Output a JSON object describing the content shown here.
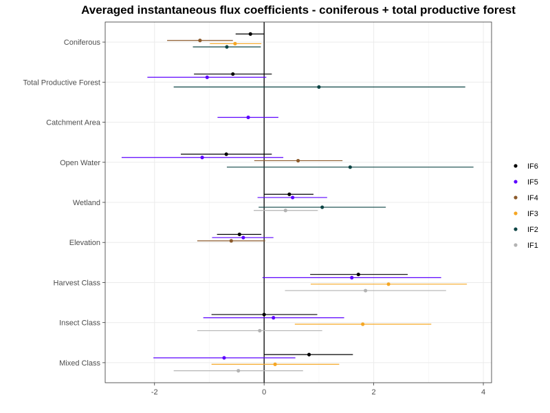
{
  "chart_data": {
    "type": "scatter",
    "title": "Averaged instantaneous flux coefficients - coniferous + total productive forest",
    "xlabel": "",
    "ylabel": "",
    "xlim": [
      -2.9,
      4.15
    ],
    "x_ticks": [
      -2,
      0,
      2,
      4
    ],
    "x_tick_labels": [
      "-2",
      "0",
      "2",
      "4"
    ],
    "reference_line_x": 0,
    "grid": true,
    "legend_position": "right",
    "categories": [
      "Coniferous",
      "Total Productive Forest",
      "Catchment Area",
      "Open Water",
      "Wetland",
      "Elevation",
      "Harvest Class",
      "Insect Class",
      "Mixed Class"
    ],
    "series": [
      {
        "name": "IF6",
        "color": "#000000",
        "points": [
          {
            "category": "Coniferous",
            "estimate": -0.25,
            "lower": -0.52,
            "upper": 0.0
          },
          {
            "category": "Total Productive Forest",
            "estimate": -0.57,
            "lower": -1.28,
            "upper": 0.14
          },
          {
            "category": "Open Water",
            "estimate": -0.69,
            "lower": -1.52,
            "upper": 0.14
          },
          {
            "category": "Wetland",
            "estimate": 0.46,
            "lower": 0.0,
            "upper": 0.9
          },
          {
            "category": "Elevation",
            "estimate": -0.45,
            "lower": -0.86,
            "upper": -0.05
          },
          {
            "category": "Harvest Class",
            "estimate": 1.72,
            "lower": 0.84,
            "upper": 2.62
          },
          {
            "category": "Insect Class",
            "estimate": 0.0,
            "lower": -0.96,
            "upper": 0.97
          },
          {
            "category": "Mixed Class",
            "estimate": 0.82,
            "lower": 0.0,
            "upper": 1.62
          }
        ]
      },
      {
        "name": "IF5",
        "color": "#5b00ff",
        "points": [
          {
            "category": "Total Productive Forest",
            "estimate": -1.04,
            "lower": -2.13,
            "upper": 0.04
          },
          {
            "category": "Catchment Area",
            "estimate": -0.29,
            "lower": -0.85,
            "upper": 0.26
          },
          {
            "category": "Open Water",
            "estimate": -1.13,
            "lower": -2.6,
            "upper": 0.35
          },
          {
            "category": "Wetland",
            "estimate": 0.52,
            "lower": -0.12,
            "upper": 1.15
          },
          {
            "category": "Elevation",
            "estimate": -0.38,
            "lower": -0.95,
            "upper": 0.17
          },
          {
            "category": "Harvest Class",
            "estimate": 1.6,
            "lower": -0.03,
            "upper": 3.23
          },
          {
            "category": "Insect Class",
            "estimate": 0.17,
            "lower": -1.11,
            "upper": 1.46
          },
          {
            "category": "Mixed Class",
            "estimate": -0.73,
            "lower": -2.02,
            "upper": 0.57
          }
        ]
      },
      {
        "name": "IF4",
        "color": "#8b5a2b",
        "points": [
          {
            "category": "Coniferous",
            "estimate": -1.17,
            "lower": -1.77,
            "upper": -0.57
          },
          {
            "category": "Open Water",
            "estimate": 0.62,
            "lower": -0.18,
            "upper": 1.43
          },
          {
            "category": "Elevation",
            "estimate": -0.6,
            "lower": -1.22,
            "upper": 0.02
          }
        ]
      },
      {
        "name": "IF3",
        "color": "#f5a623",
        "points": [
          {
            "category": "Coniferous",
            "estimate": -0.53,
            "lower": -0.99,
            "upper": -0.05
          },
          {
            "category": "Harvest Class",
            "estimate": 2.27,
            "lower": 0.85,
            "upper": 3.7
          },
          {
            "category": "Insect Class",
            "estimate": 1.8,
            "lower": 0.56,
            "upper": 3.05
          },
          {
            "category": "Mixed Class",
            "estimate": 0.2,
            "lower": -0.96,
            "upper": 1.37
          }
        ]
      },
      {
        "name": "IF2",
        "color": "#0e4545",
        "points": [
          {
            "category": "Coniferous",
            "estimate": -0.68,
            "lower": -1.3,
            "upper": -0.06
          },
          {
            "category": "Total Productive Forest",
            "estimate": 1.0,
            "lower": -1.65,
            "upper": 3.67
          },
          {
            "category": "Open Water",
            "estimate": 1.57,
            "lower": -0.68,
            "upper": 3.82
          },
          {
            "category": "Wetland",
            "estimate": 1.06,
            "lower": -0.1,
            "upper": 2.22
          }
        ]
      },
      {
        "name": "IF1",
        "color": "#b3b3b3",
        "points": [
          {
            "category": "Wetland",
            "estimate": 0.39,
            "lower": -0.19,
            "upper": 0.98
          },
          {
            "category": "Harvest Class",
            "estimate": 1.85,
            "lower": 0.38,
            "upper": 3.32
          },
          {
            "category": "Insect Class",
            "estimate": -0.08,
            "lower": -1.22,
            "upper": 1.06
          },
          {
            "category": "Mixed Class",
            "estimate": -0.47,
            "lower": -1.65,
            "upper": 0.71
          }
        ]
      }
    ]
  }
}
